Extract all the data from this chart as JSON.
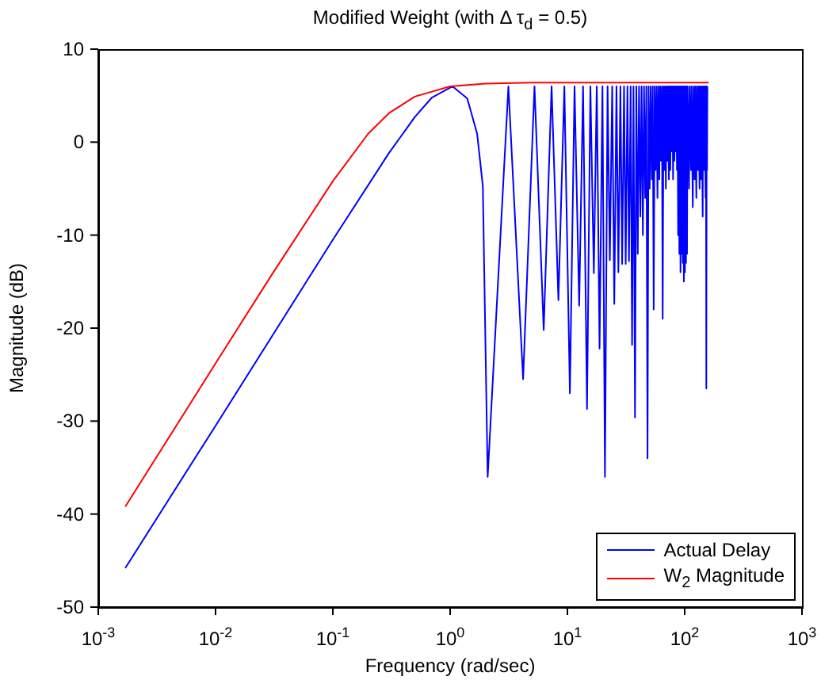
{
  "chart_data": {
    "type": "line",
    "title": "Modified Weight (with Δ τ$_{d}$ = 0.5)",
    "xlabel": "Frequency (rad/sec)",
    "ylabel": "Magnitude (dB)",
    "log": "x",
    "grid": false,
    "legend": "bottom right",
    "xlim": [
      0.001,
      1000
    ],
    "xticks": [
      {
        "value": 0.001,
        "label": "10$^{-3}$"
      },
      {
        "value": 0.01,
        "label": "10$^{-2}$"
      },
      {
        "value": 0.1,
        "label": "10$^{-1}$"
      },
      {
        "value": 1,
        "label": "10$^{0}$"
      },
      {
        "value": 10,
        "label": "10$^{1}$"
      },
      {
        "value": 100,
        "label": "10$^{2}$"
      },
      {
        "value": 1000,
        "label": "10$^{3}$"
      }
    ],
    "ylim": [
      -50,
      10
    ],
    "yticks": [
      -50,
      -40,
      -30,
      -20,
      -10,
      0,
      10
    ],
    "series": [
      {
        "name": "Actual Delay",
        "color": "#0000ff",
        "x": [
          0.0017,
          0.01,
          0.1,
          0.3,
          0.5,
          0.7,
          1.05,
          1.4,
          1.7,
          1.9,
          2.09,
          3.14,
          4.19,
          5.24,
          6.28,
          7.33,
          8.38,
          9.42,
          10.5,
          11.5,
          12.6,
          13.6,
          14.7,
          15.7,
          16.8,
          17.8,
          18.8,
          19.9,
          20.9,
          22.0,
          23.0,
          24.1,
          25.1,
          26.2,
          27.2,
          28.3,
          29.3,
          30.4,
          31.4,
          32.5,
          33.5,
          34.6,
          35.6,
          36.6,
          37.7,
          38.7,
          39.8,
          40.8,
          41.9,
          42.9,
          44.0,
          45.0,
          46.1,
          47.1,
          48.2,
          49.2,
          50.3,
          51.3,
          52.4,
          53.4,
          54.4,
          55.5,
          56.5,
          57.6,
          58.6,
          59.7,
          60.7,
          61.8,
          62.8,
          63.9,
          64.9,
          66.0,
          67.0,
          68.1,
          69.1,
          70.2,
          71.2,
          72.3,
          73.3,
          74.4,
          75.4,
          76.4,
          77.5,
          78.5,
          79.6,
          80.6,
          81.7,
          82.7,
          83.8,
          84.8,
          85.9,
          86.9,
          87.9,
          89.0,
          90.0,
          91.1,
          92.1,
          93.2,
          94.2,
          95.3,
          96.3,
          97.4,
          98.4,
          99.5,
          100.5,
          101.6,
          102.6,
          103.7,
          104.7,
          105.8,
          108.9,
          110.0,
          113.1,
          114.1,
          117.3,
          118.3,
          121.5,
          122.5,
          125.7,
          126.7,
          129.8,
          130.9,
          134.0,
          135.1,
          138.2,
          139.3,
          142.4,
          143.5,
          146.6,
          147.6,
          150.8,
          151.8,
          152.9,
          154.0,
          155.0,
          156.1
        ],
        "values": [
          -45.8,
          -30.5,
          -10.5,
          -1.2,
          2.7,
          4.8,
          6.0,
          4.7,
          0.9,
          -4.7,
          -36,
          6.0,
          -25.5,
          6.0,
          -20.2,
          6.0,
          -17,
          6.0,
          -27,
          6.0,
          -17.6,
          6.0,
          -28.7,
          6.0,
          -14.1,
          6.0,
          -22.2,
          6.0,
          -36,
          6.0,
          -12.7,
          6.0,
          -17.4,
          6.0,
          -14,
          6.0,
          -13.1,
          6.0,
          -13.1,
          6.0,
          -12.8,
          6.0,
          -21.8,
          6.0,
          -29.6,
          6.0,
          -12,
          6.0,
          -8,
          6.0,
          -10,
          6.0,
          -6,
          6.0,
          -34,
          6.0,
          -5,
          6.0,
          -4,
          6.0,
          -18,
          6.0,
          -3,
          6.0,
          -6,
          6.0,
          -4,
          6.0,
          -2,
          6.0,
          -19,
          6.0,
          -3,
          6.0,
          -5,
          6.0,
          -2,
          6.0,
          -4,
          6.0,
          -3,
          6.0,
          -1,
          6.0,
          -4,
          6.0,
          -2,
          6.0,
          -1,
          6.0,
          -3,
          6.0,
          -10,
          6.0,
          -12,
          6.0,
          -14,
          6.0,
          -12,
          6.0,
          -13,
          6.0,
          -15,
          6.0,
          -14,
          6.0,
          -13,
          6.0,
          -12,
          6.0,
          -5,
          6.0,
          -3,
          6.0,
          -7,
          6.0,
          -4,
          6.0,
          -6,
          6.0,
          -3,
          6.0,
          -5,
          6.0,
          -4,
          6.0,
          -8,
          6.0,
          -3,
          6.0,
          -6,
          6.0,
          -26.5,
          6.0,
          -3,
          6.0
        ]
      },
      {
        "name": "W$_{2}$ Magnitude",
        "color": "#ff0000",
        "x": [
          0.0017,
          0.01,
          0.03,
          0.1,
          0.2,
          0.3,
          0.5,
          1,
          2,
          5,
          20,
          160
        ],
        "values": [
          -39.2,
          -23.8,
          -14.3,
          -4.2,
          0.9,
          3.1,
          4.9,
          6.0,
          6.3,
          6.4,
          6.4,
          6.4
        ]
      }
    ]
  }
}
